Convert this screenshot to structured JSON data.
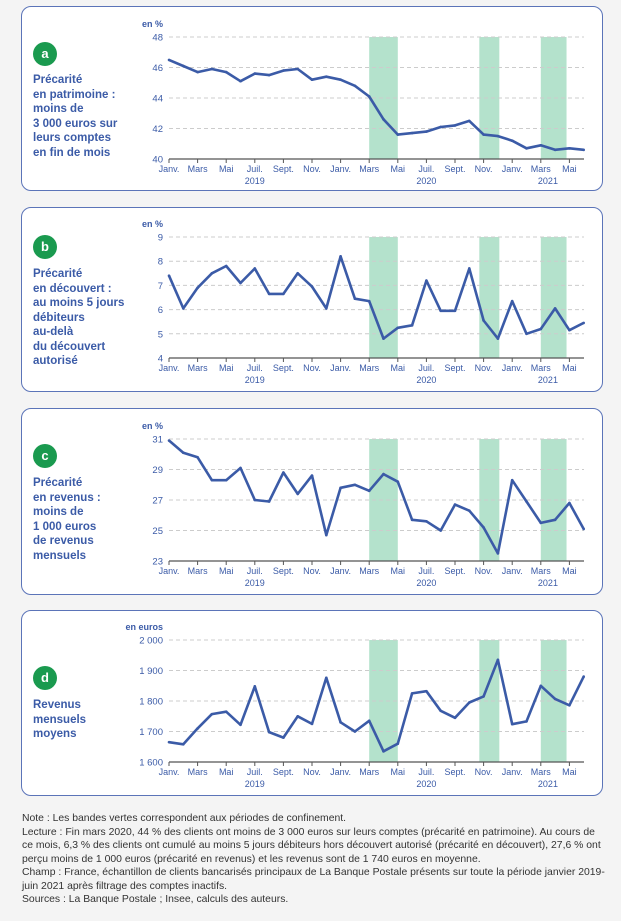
{
  "colors": {
    "line": "#3b5ba7",
    "band": "#b4e2cc",
    "badge": "#1a9a4f",
    "text": "#3b5ba7",
    "border": "#5b74b8",
    "grid": "#cccccc",
    "axis": "#555555"
  },
  "chart_data": [
    {
      "id": "a",
      "type": "line",
      "badge": "a",
      "title": "Précarité\nen patrimoine :\nmoins de\n3 000 euros sur\nleurs comptes\nen fin de mois",
      "ylabel": "en %",
      "ylim": [
        40,
        48
      ],
      "yticks": [
        40,
        42,
        44,
        46,
        48
      ],
      "ytick_labels": [
        "40",
        "42",
        "44",
        "46",
        "48"
      ],
      "grid": true,
      "x_months": [
        "2019-01",
        "2019-02",
        "2019-03",
        "2019-04",
        "2019-05",
        "2019-06",
        "2019-07",
        "2019-08",
        "2019-09",
        "2019-10",
        "2019-11",
        "2019-12",
        "2020-01",
        "2020-02",
        "2020-03",
        "2020-04",
        "2020-05",
        "2020-06",
        "2020-07",
        "2020-08",
        "2020-09",
        "2020-10",
        "2020-11",
        "2020-12",
        "2021-01",
        "2021-02",
        "2021-03",
        "2021-04",
        "2021-05",
        "2021-06"
      ],
      "series": [
        {
          "name": "Précarité en patrimoine",
          "values": [
            46.5,
            46.1,
            45.7,
            45.9,
            45.7,
            45.1,
            45.6,
            45.5,
            45.8,
            45.9,
            45.2,
            45.4,
            45.2,
            44.8,
            44.1,
            42.6,
            41.6,
            41.7,
            41.8,
            42.1,
            42.2,
            42.5,
            41.6,
            41.5,
            41.2,
            40.7,
            40.9,
            40.6,
            40.7,
            40.6
          ]
        }
      ]
    },
    {
      "id": "b",
      "type": "line",
      "badge": "b",
      "title": "Précarité\nen découvert :\nau moins 5 jours\ndébiteurs\nau-delà\ndu découvert\nautorisé",
      "ylabel": "en %",
      "ylim": [
        4,
        9
      ],
      "yticks": [
        4,
        5,
        6,
        7,
        8,
        9
      ],
      "ytick_labels": [
        "4",
        "5",
        "6",
        "7",
        "8",
        "9"
      ],
      "grid": true,
      "series": [
        {
          "name": "Précarité en découvert",
          "values": [
            7.4,
            6.05,
            6.9,
            7.5,
            7.8,
            7.1,
            7.7,
            6.65,
            6.65,
            7.5,
            6.95,
            6.05,
            8.2,
            6.45,
            6.35,
            4.8,
            5.25,
            5.35,
            7.2,
            5.95,
            5.95,
            7.7,
            5.55,
            4.8,
            6.35,
            5.0,
            5.2,
            6.05,
            5.15,
            5.45
          ]
        }
      ]
    },
    {
      "id": "c",
      "type": "line",
      "badge": "c",
      "title": "Précarité\nen revenus :\nmoins de\n1 000 euros\nde revenus\nmensuels",
      "ylabel": "en %",
      "ylim": [
        23,
        31
      ],
      "yticks": [
        23,
        25,
        27,
        29,
        31
      ],
      "ytick_labels": [
        "23",
        "25",
        "27",
        "29",
        "31"
      ],
      "grid": true,
      "series": [
        {
          "name": "Précarité en revenus",
          "values": [
            30.9,
            30.1,
            29.8,
            28.3,
            28.3,
            29.1,
            27.0,
            26.9,
            28.8,
            27.4,
            28.6,
            24.7,
            27.8,
            28.0,
            27.6,
            28.7,
            28.2,
            25.7,
            25.6,
            25.0,
            26.7,
            26.3,
            25.2,
            23.5,
            28.3,
            26.9,
            25.5,
            25.7,
            26.8,
            25.1
          ]
        }
      ]
    },
    {
      "id": "d",
      "type": "line",
      "badge": "d",
      "title": "Revenus\nmensuels\nmoyens",
      "ylabel": "en euros",
      "ylim": [
        1600,
        2000
      ],
      "yticks": [
        1600,
        1700,
        1800,
        1900,
        2000
      ],
      "ytick_labels": [
        "1 600",
        "1 700",
        "1 800",
        "1 900",
        "2 000"
      ],
      "grid": true,
      "series": [
        {
          "name": "Revenus mensuels moyens",
          "values": [
            1665,
            1658,
            1710,
            1757,
            1765,
            1722,
            1848,
            1698,
            1680,
            1750,
            1725,
            1876,
            1730,
            1700,
            1735,
            1635,
            1660,
            1825,
            1832,
            1768,
            1745,
            1795,
            1815,
            1935,
            1724,
            1733,
            1850,
            1807,
            1786,
            1880
          ]
        }
      ]
    }
  ],
  "x_axis": {
    "tick_labels": [
      {
        "month_index": 0,
        "label": "Janv."
      },
      {
        "month_index": 2,
        "label": "Mars"
      },
      {
        "month_index": 4,
        "label": "Mai"
      },
      {
        "month_index": 6,
        "label": "Juil."
      },
      {
        "month_index": 8,
        "label": "Sept."
      },
      {
        "month_index": 10,
        "label": "Nov."
      },
      {
        "month_index": 12,
        "label": "Janv."
      },
      {
        "month_index": 14,
        "label": "Mars"
      },
      {
        "month_index": 16,
        "label": "Mai"
      },
      {
        "month_index": 18,
        "label": "Juil."
      },
      {
        "month_index": 20,
        "label": "Sept."
      },
      {
        "month_index": 22,
        "label": "Nov."
      },
      {
        "month_index": 24,
        "label": "Janv."
      },
      {
        "month_index": 26,
        "label": "Mars"
      },
      {
        "month_index": 28,
        "label": "Mai"
      }
    ],
    "year_labels": [
      {
        "month_index": 6,
        "label": "2019"
      },
      {
        "month_index": 18,
        "label": "2020"
      },
      {
        "month_index": 26.5,
        "label": "2021"
      }
    ]
  },
  "lockdown_bands": [
    {
      "start_month": 14,
      "end_month": 16,
      "label": "Confinement mars-mai 2020"
    },
    {
      "start_month": 21.7,
      "end_month": 23.1,
      "label": "Confinement nov.-déc. 2020"
    },
    {
      "start_month": 26,
      "end_month": 27.8,
      "label": "Confinement mars-mai 2021"
    }
  ],
  "notes": {
    "note": "Note : Les bandes vertes correspondent aux périodes de confinement.",
    "lecture": "Lecture : Fin mars 2020, 44 % des clients ont moins de 3 000 euros sur leurs comptes (précarité en patrimoine). Au cours de ce mois, 6,3 % des clients ont cumulé au moins 5 jours débiteurs hors découvert autorisé (précarité en découvert), 27,6 % ont perçu moins de 1 000 euros (précarité en revenus) et les revenus sont de 1 740 euros en moyenne.",
    "champ": "Champ : France, échantillon de clients bancarisés principaux de La Banque Postale présents sur toute la période janvier 2019-juin 2021 après filtrage des comptes inactifs.",
    "sources": "Sources : La Banque Postale ; Insee, calculs des auteurs."
  }
}
